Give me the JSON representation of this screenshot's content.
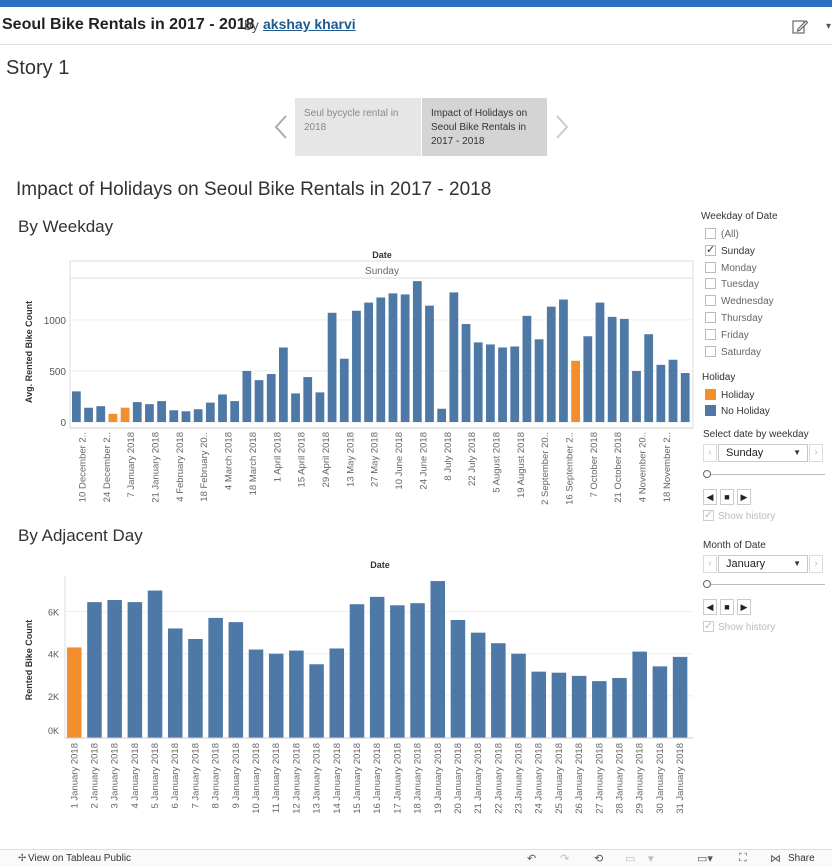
{
  "header": {
    "title": "Seoul Bike Rentals in 2017 - 2018",
    "by": "by",
    "author": "akshay kharvi"
  },
  "story": {
    "title": "Story 1",
    "points": [
      {
        "label": "Seul bycycle rental in 2018"
      },
      {
        "label": "Impact of Holidays on Seoul Bike Rentals in 2017 - 2018"
      }
    ]
  },
  "viz_title": "Impact of Holidays on Seoul Bike Rentals in 2017 - 2018",
  "sections": {
    "weekday": "By Weekday",
    "adjacent": "By Adjacent Day"
  },
  "filters": {
    "weekday_header": "Weekday of Date",
    "weekday_options": [
      "(All)",
      "Sunday",
      "Monday",
      "Tuesday",
      "Wednesday",
      "Thursday",
      "Friday",
      "Saturday"
    ],
    "weekday_checked": [
      "Sunday"
    ],
    "holiday_header": "Holiday",
    "holiday_items": [
      {
        "label": "Holiday",
        "color": "#f28e2b"
      },
      {
        "label": "No Holiday",
        "color": "#4e79a7"
      }
    ],
    "select_weekday_label": "Select date by weekday",
    "select_weekday_value": "Sunday",
    "month_label": "Month of Date",
    "month_value": "January",
    "show_history": "Show history"
  },
  "footer": {
    "view_link": "View on Tableau Public",
    "share": "Share"
  },
  "colors": {
    "holiday": "#f28e2b",
    "no_holiday": "#4e79a7",
    "accent": "#2a6fbd"
  },
  "chart_data": [
    {
      "type": "bar",
      "title": "Date",
      "subtitle": "Sunday",
      "ylabel": "Avg. Rented Bike Count",
      "ylim": [
        0,
        1400
      ],
      "yticks": [
        0,
        500,
        1000
      ],
      "tick_labels": [
        "10 December 2..",
        "24 December 2..",
        "7 January 2018",
        "21 January 2018",
        "4 February 2018",
        "18 February 20..",
        "4 March 2018",
        "18 March 2018",
        "1 April 2018",
        "15 April 2018",
        "29 April 2018",
        "13 May 2018",
        "27 May 2018",
        "10 June 2018",
        "24 June 2018",
        "8 July 2018",
        "22 July 2018",
        "5 August 2018",
        "19 August 2018",
        "2 September 20..",
        "16 September 2..",
        "7 October 2018",
        "21 October 2018",
        "4 November 20..",
        "18 November 2.."
      ],
      "values": [
        300,
        140,
        155,
        80,
        140,
        195,
        175,
        205,
        115,
        105,
        125,
        190,
        270,
        205,
        500,
        410,
        470,
        730,
        280,
        440,
        290,
        1070,
        620,
        1090,
        1170,
        1220,
        1260,
        1250,
        1380,
        1140,
        130,
        1270,
        960,
        780,
        760,
        730,
        740,
        1040,
        810,
        1130,
        1200,
        600,
        840,
        1170,
        1030,
        1010,
        500,
        860,
        560,
        610,
        480
      ],
      "holiday_index": [
        3,
        4,
        41
      ]
    },
    {
      "type": "bar",
      "title": "Date",
      "ylabel": "Rented Bike Count",
      "ylim": [
        0,
        8000
      ],
      "yticks": [
        "0K",
        "2K",
        "4K",
        "6K"
      ],
      "categories": [
        "1 January 2018",
        "2 January 2018",
        "3 January 2018",
        "4 January 2018",
        "5 January 2018",
        "6 January 2018",
        "7 January 2018",
        "8 January 2018",
        "9 January 2018",
        "10 January 2018",
        "11 January 2018",
        "12 January 2018",
        "13 January 2018",
        "14 January 2018",
        "15 January 2018",
        "16 January 2018",
        "17 January 2018",
        "18 January 2018",
        "19 January 2018",
        "20 January 2018",
        "21 January 2018",
        "22 January 2018",
        "23 January 2018",
        "24 January 2018",
        "25 January 2018",
        "26 January 2018",
        "27 January 2018",
        "28 January 2018",
        "29 January 2018",
        "30 January 2018",
        "31 January 2018"
      ],
      "values": [
        4300,
        6450,
        6550,
        6450,
        7000,
        5200,
        4700,
        5700,
        5500,
        4200,
        4000,
        4150,
        3500,
        4250,
        6350,
        6700,
        6300,
        6400,
        7450,
        5600,
        5000,
        4500,
        4000,
        3150,
        3100,
        2950,
        2700,
        2850,
        4100,
        3400,
        3850
      ],
      "holiday_index": [
        0
      ]
    }
  ]
}
